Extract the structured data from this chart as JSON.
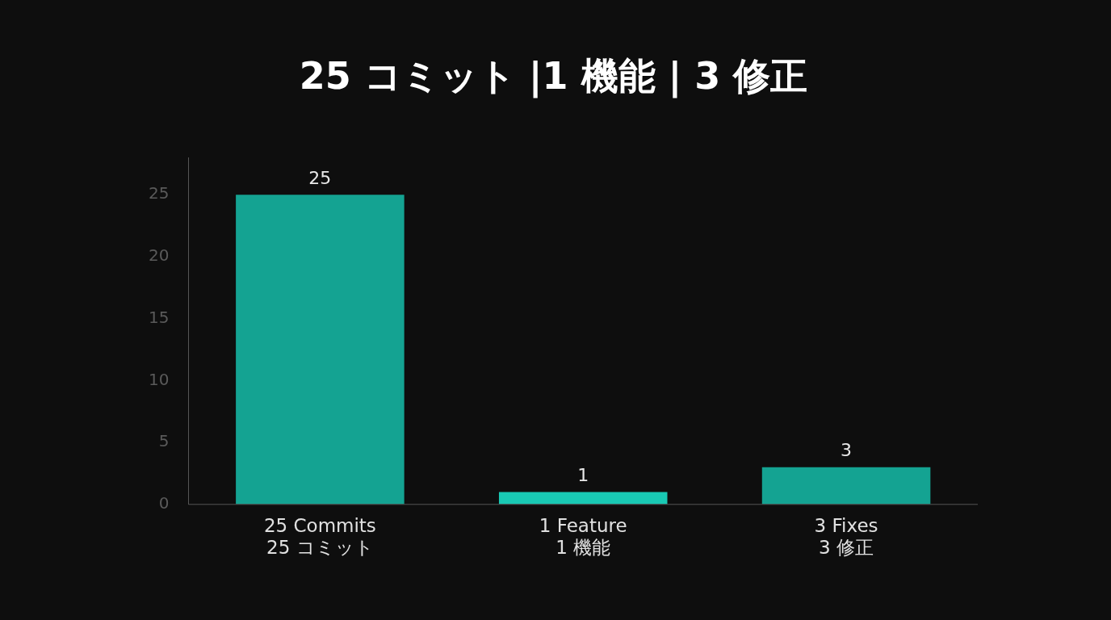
{
  "chart_data": {
    "type": "bar",
    "title": "25 コミット |1 機能 | 3 修正",
    "categories": [
      "25 Commits\n25 コミット",
      "1 Feature\n1 機能",
      "3 Fixes\n3 修正"
    ],
    "values": [
      25,
      1,
      3
    ],
    "colors": [
      "#14a392",
      "#19c9b4",
      "#14a392"
    ],
    "ylim": [
      0,
      28
    ],
    "yticks": [
      0,
      5,
      10,
      15,
      20,
      25
    ],
    "grid": false,
    "data_labels": true
  }
}
